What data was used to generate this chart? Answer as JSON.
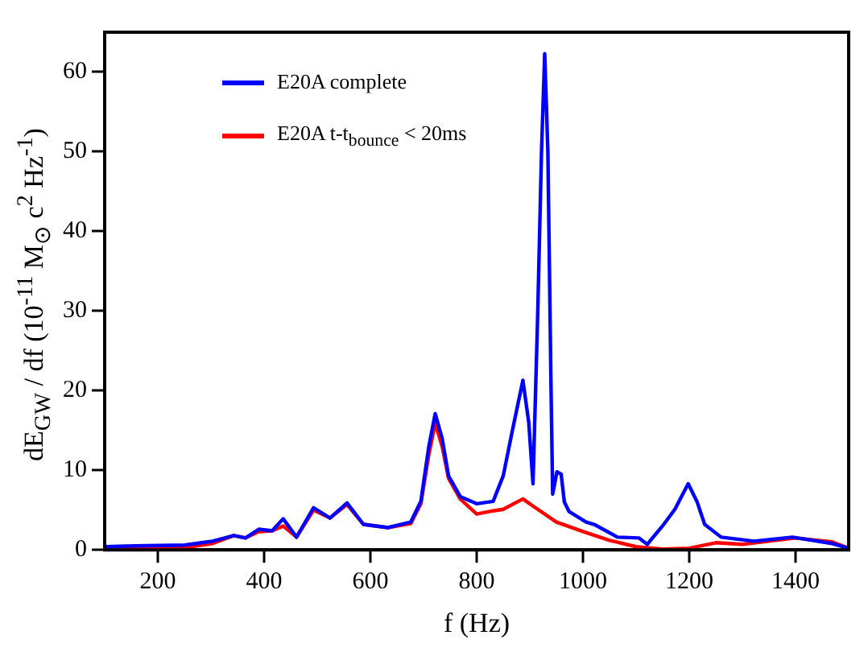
{
  "chart_data": {
    "type": "line",
    "xlabel": "f (Hz)",
    "ylabel": "dE$_{GW}$ / df  (10$^{-11}$ M$_{⊙}$ c$^{2}$ Hz$^{-1}$)",
    "xlim": [
      100,
      1500
    ],
    "ylim": [
      0,
      65
    ],
    "xticks": [
      200,
      400,
      600,
      800,
      1000,
      1200,
      1400
    ],
    "yticks": [
      0,
      10,
      20,
      30,
      40,
      50,
      60
    ],
    "grid": false,
    "legend": "top left",
    "marker": "none",
    "line_style": "solid",
    "series": [
      {
        "name": "E20A complete",
        "color": "#0000ff",
        "x": [
          100,
          156,
          250,
          303,
          343,
          365,
          390,
          415,
          436,
          461,
          493,
          524,
          556,
          587,
          633,
          676,
          695,
          710,
          722,
          735,
          747,
          769,
          800,
          831,
          850,
          866,
          887,
          898,
          906,
          915,
          922,
          928,
          934,
          940,
          943,
          951,
          959,
          965,
          974,
          1006,
          1021,
          1065,
          1105,
          1121,
          1152,
          1173,
          1198,
          1215,
          1229,
          1260,
          1322,
          1394,
          1469,
          1500
        ],
        "values": [
          0.4,
          0.5,
          0.6,
          1.1,
          1.8,
          1.5,
          2.6,
          2.4,
          3.9,
          1.6,
          5.3,
          4.0,
          5.9,
          3.2,
          2.8,
          3.5,
          6.1,
          13,
          17.1,
          14,
          9.3,
          6.7,
          5.8,
          6.1,
          9.3,
          14.6,
          21.3,
          16,
          8.3,
          30,
          50,
          62.3,
          50,
          20,
          7.0,
          9.8,
          9.5,
          6,
          4.8,
          3.5,
          3.2,
          1.6,
          1.5,
          0.7,
          3.2,
          5.1,
          8.3,
          6,
          3.2,
          1.6,
          1.1,
          1.6,
          0.8,
          0.2
        ]
      },
      {
        "name": "E20A t-t$_{bounce}$ < 20ms",
        "color": "#ff0000",
        "x": [
          100,
          156,
          250,
          303,
          343,
          365,
          390,
          415,
          436,
          461,
          493,
          524,
          556,
          587,
          633,
          676,
          695,
          710,
          722,
          735,
          747,
          769,
          800,
          831,
          850,
          887,
          906,
          950,
          1000,
          1050,
          1100,
          1150,
          1200,
          1250,
          1300,
          1400,
          1469,
          1500
        ],
        "values": [
          0.1,
          0.2,
          0.3,
          0.8,
          1.8,
          1.5,
          2.3,
          2.4,
          3.0,
          1.6,
          5.0,
          4.0,
          5.7,
          3.2,
          2.8,
          3.3,
          5.8,
          12,
          15.9,
          13,
          9.0,
          6.4,
          4.5,
          4.9,
          5.1,
          6.4,
          5.5,
          3.5,
          2.3,
          1.2,
          0.4,
          0.1,
          0.2,
          0.9,
          0.7,
          1.5,
          1.0,
          0.2
        ]
      }
    ]
  }
}
